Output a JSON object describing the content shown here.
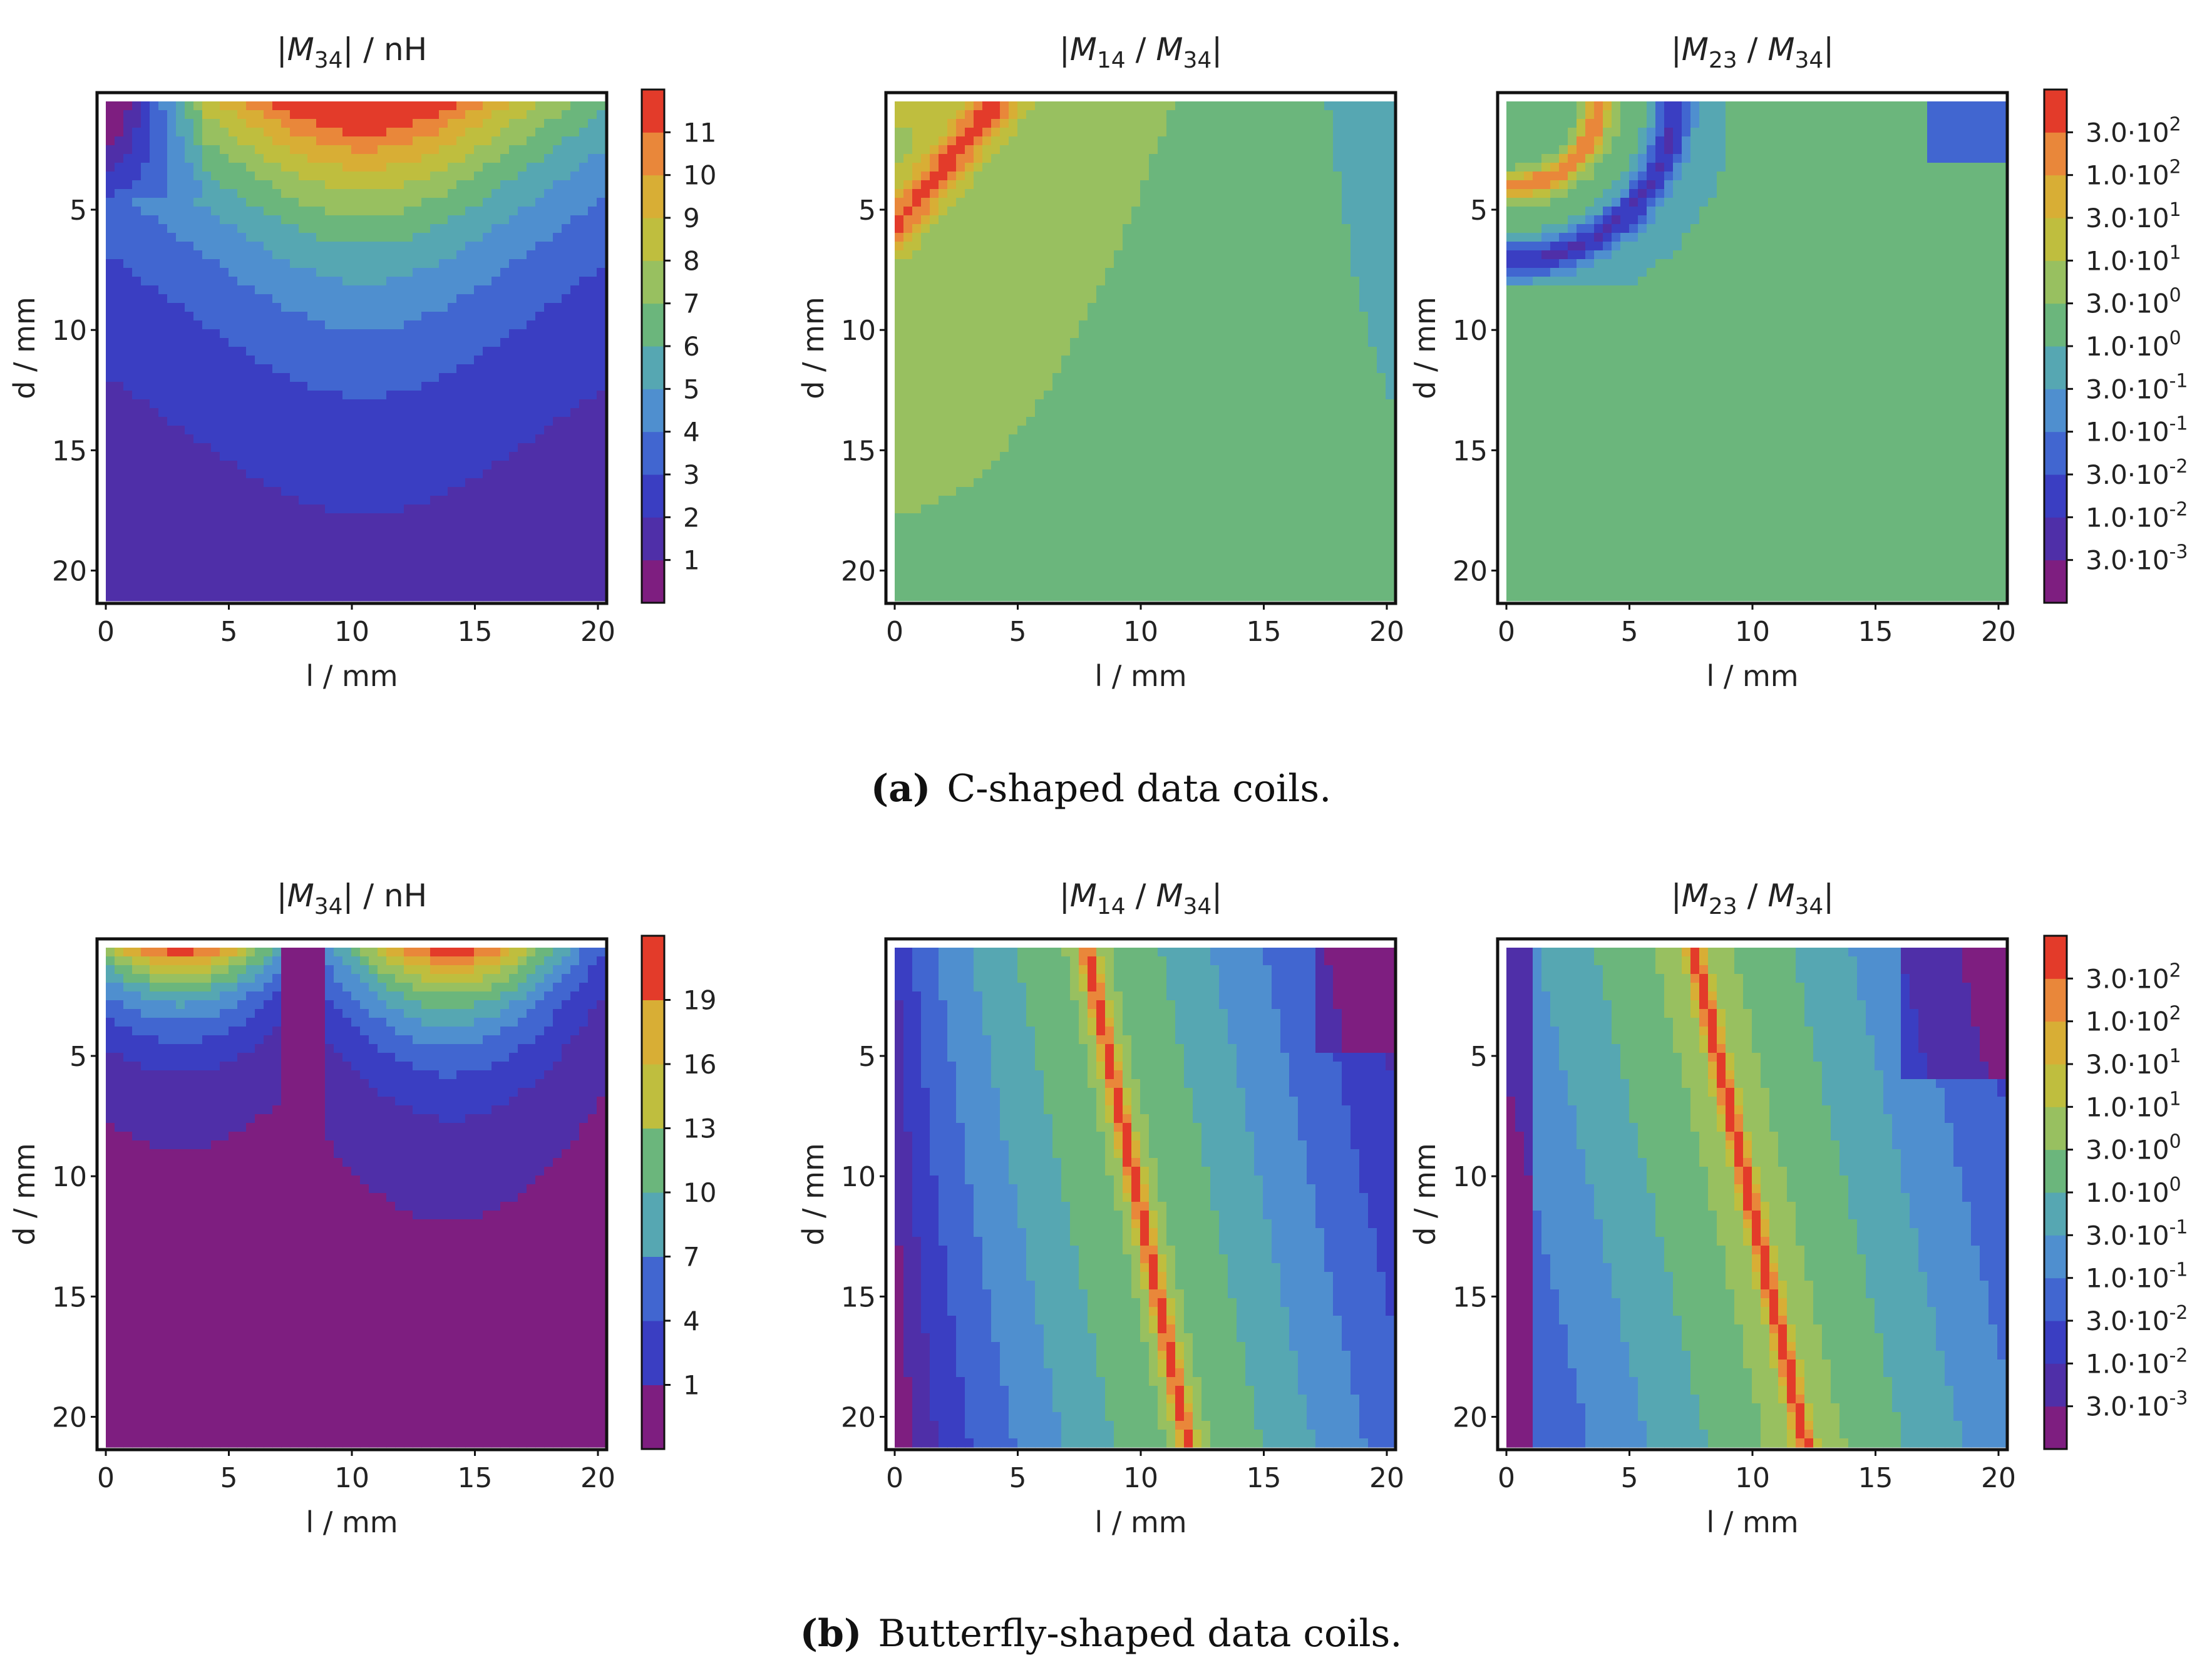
{
  "figure": {
    "rows": [
      {
        "caption_label": "(a)",
        "caption_text": "C-shaped data coils.",
        "plots": [
          {
            "title": "|M34| / nH",
            "title_parts": [
              "|",
              "M",
              "34",
              "| / nH"
            ]
          },
          {
            "title": "|M14 / M34|",
            "title_parts": [
              "|",
              "M",
              "14",
              " / ",
              "M",
              "34",
              "|"
            ]
          },
          {
            "title": "|M23 / M34|",
            "title_parts": [
              "|",
              "M",
              "23",
              " / ",
              "M",
              "34",
              "|"
            ]
          }
        ],
        "colorbars": [
          {
            "labels": [
              "1",
              "2",
              "3",
              "4",
              "5",
              "6",
              "7",
              "8",
              "9",
              "10",
              "11"
            ]
          },
          {
            "labels": [
              "3.0·10-3",
              "1.0·10-2",
              "3.0·10-2",
              "1.0·10-1",
              "3.0·10-1",
              "1.0·100",
              "3.0·100",
              "1.0·101",
              "3.0·101",
              "1.0·102",
              "3.0·102"
            ]
          }
        ]
      },
      {
        "caption_label": "(b)",
        "caption_text": "Butterfly-shaped data coils.",
        "plots": [
          {
            "title": "|M34| / nH",
            "title_parts": [
              "|",
              "M",
              "34",
              "| / nH"
            ]
          },
          {
            "title": "|M14 / M34|",
            "title_parts": [
              "|",
              "M",
              "14",
              " / ",
              "M",
              "34",
              "|"
            ]
          },
          {
            "title": "|M23 / M34|",
            "title_parts": [
              "|",
              "M",
              "23",
              " / ",
              "M",
              "34",
              "|"
            ]
          }
        ],
        "colorbars": [
          {
            "labels": [
              "1",
              "4",
              "7",
              "10",
              "13",
              "16",
              "19"
            ]
          },
          {
            "labels": [
              "3.0·10-3",
              "1.0·10-2",
              "3.0·10-2",
              "1.0·10-1",
              "3.0·10-1",
              "1.0·100",
              "3.0·100",
              "1.0·101",
              "3.0·101",
              "1.0·102",
              "3.0·102"
            ]
          }
        ]
      }
    ]
  },
  "chart_data": [
    {
      "type": "heatmap",
      "title": "|M34| / nH",
      "xlabel": "l / mm",
      "ylabel": "d / mm",
      "x_ticks": [
        0,
        5,
        10,
        15,
        20
      ],
      "y_ticks": [
        5,
        10,
        15,
        20
      ],
      "xlim": [
        0,
        20
      ],
      "ylim": [
        21,
        0.5
      ],
      "colorbar_levels": [
        1,
        2,
        3,
        4,
        5,
        6,
        7,
        8,
        9,
        10,
        11
      ],
      "colorbar_range": [
        0,
        12
      ]
    },
    {
      "type": "heatmap",
      "title": "|M14 / M34|",
      "xlabel": "l / mm",
      "ylabel": "d / mm",
      "x_ticks": [
        0,
        5,
        10,
        15,
        20
      ],
      "y_ticks": [
        5,
        10,
        15,
        20
      ],
      "xlim": [
        0,
        20
      ],
      "ylim": [
        21,
        0.5
      ],
      "log_scale": true
    },
    {
      "type": "heatmap",
      "title": "|M23 / M34|",
      "xlabel": "l / mm",
      "ylabel": "d / mm",
      "x_ticks": [
        0,
        5,
        10,
        15,
        20
      ],
      "y_ticks": [
        5,
        10,
        15,
        20
      ],
      "xlim": [
        0,
        20
      ],
      "ylim": [
        21,
        0.5
      ],
      "log_scale": true,
      "colorbar_levels": [
        0.003,
        0.01,
        0.03,
        0.1,
        0.3,
        1,
        3,
        10,
        30,
        100,
        300
      ]
    },
    {
      "type": "heatmap",
      "title": "|M34| / nH",
      "xlabel": "l / mm",
      "ylabel": "d / mm",
      "x_ticks": [
        0,
        5,
        10,
        15,
        20
      ],
      "y_ticks": [
        5,
        10,
        15,
        20
      ],
      "xlim": [
        0,
        20
      ],
      "ylim": [
        21,
        0.5
      ],
      "colorbar_levels": [
        1,
        4,
        7,
        10,
        13,
        16,
        19
      ],
      "colorbar_range": [
        0,
        20
      ]
    },
    {
      "type": "heatmap",
      "title": "|M14 / M34|",
      "xlabel": "l / mm",
      "ylabel": "d / mm",
      "x_ticks": [
        0,
        5,
        10,
        15,
        20
      ],
      "y_ticks": [
        5,
        10,
        15,
        20
      ],
      "xlim": [
        0,
        20
      ],
      "ylim": [
        21,
        0.5
      ],
      "log_scale": true
    },
    {
      "type": "heatmap",
      "title": "|M23 / M34|",
      "xlabel": "l / mm",
      "ylabel": "d / mm",
      "x_ticks": [
        0,
        5,
        10,
        15,
        20
      ],
      "y_ticks": [
        5,
        10,
        15,
        20
      ],
      "xlim": [
        0,
        20
      ],
      "ylim": [
        21,
        0.5
      ],
      "log_scale": true,
      "colorbar_levels": [
        0.003,
        0.01,
        0.03,
        0.1,
        0.3,
        1,
        3,
        10,
        30,
        100,
        300
      ]
    }
  ]
}
